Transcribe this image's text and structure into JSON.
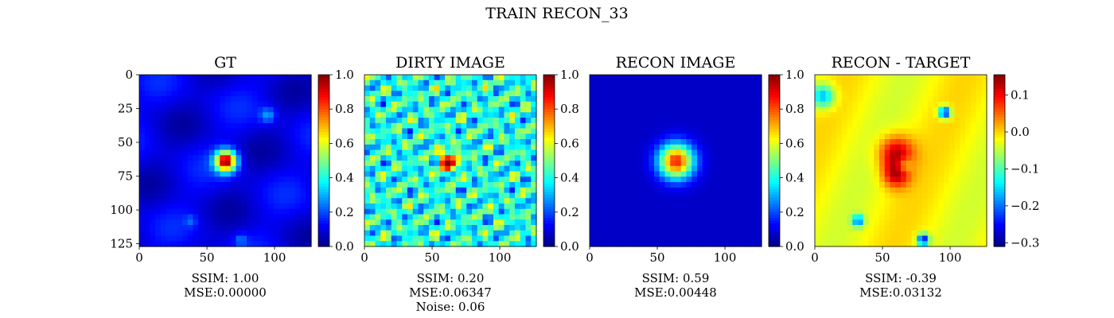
{
  "figure": {
    "title": "TRAIN RECON_33"
  },
  "chart_data": [
    {
      "type": "heatmap",
      "title": "GT",
      "xlim": [
        0,
        127
      ],
      "ylim": [
        127,
        0
      ],
      "xticks": [
        "0",
        "50",
        "100"
      ],
      "yticks": [
        "0",
        "25",
        "50",
        "75",
        "100",
        "125"
      ],
      "colormap": "jet",
      "colorbar": {
        "min": 0.0,
        "max": 1.0,
        "ticks": [
          "0.0",
          "0.2",
          "0.4",
          "0.6",
          "0.8",
          "1.0"
        ]
      },
      "captions": [
        "SSIM: 1.00",
        "MSE:0.00000"
      ]
    },
    {
      "type": "heatmap",
      "title": "DIRTY IMAGE",
      "xlim": [
        0,
        127
      ],
      "ylim": [
        127,
        0
      ],
      "xticks": [
        "0",
        "50",
        "100"
      ],
      "colormap": "jet",
      "colorbar": {
        "min": 0.0,
        "max": 1.0,
        "ticks": [
          "0.0",
          "0.2",
          "0.4",
          "0.6",
          "0.8",
          "1.0"
        ]
      },
      "captions": [
        "SSIM: 0.20",
        "MSE:0.06347",
        "Noise: 0.06"
      ]
    },
    {
      "type": "heatmap",
      "title": "RECON IMAGE",
      "xlim": [
        0,
        127
      ],
      "ylim": [
        127,
        0
      ],
      "xticks": [
        "0",
        "50",
        "100"
      ],
      "colormap": "jet",
      "colorbar": {
        "min": 0.0,
        "max": 1.0,
        "ticks": [
          "0.0",
          "0.2",
          "0.4",
          "0.6",
          "0.8",
          "1.0"
        ]
      },
      "captions": [
        "SSIM: 0.59",
        "MSE:0.00448"
      ]
    },
    {
      "type": "heatmap",
      "title": "RECON - TARGET",
      "xlim": [
        0,
        127
      ],
      "ylim": [
        127,
        0
      ],
      "xticks": [
        "0",
        "50",
        "100"
      ],
      "colormap": "jet",
      "colorbar": {
        "min": -0.31,
        "max": 0.155,
        "ticks": [
          "0.1",
          "0.0",
          "−0.1",
          "−0.2",
          "−0.3"
        ]
      },
      "captions": [
        "SSIM: -0.39",
        "MSE:0.03132"
      ]
    }
  ]
}
